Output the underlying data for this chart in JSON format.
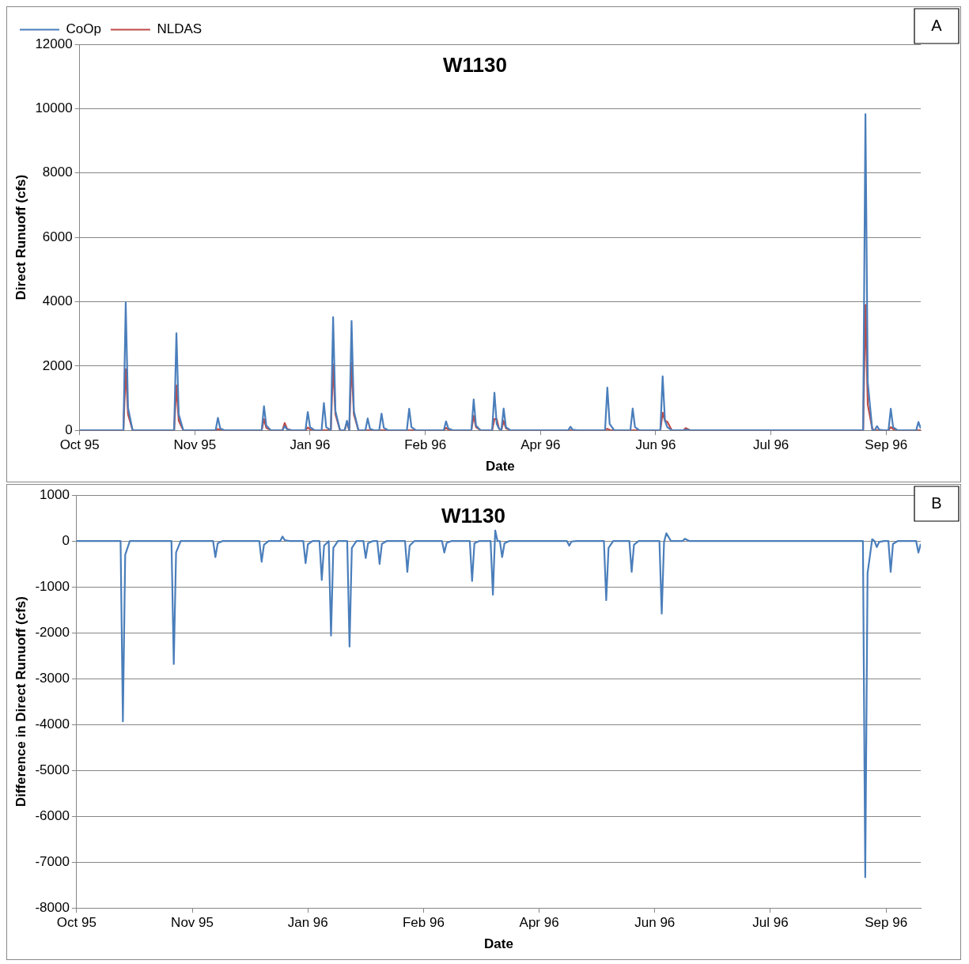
{
  "chart_data": [
    {
      "type": "line",
      "title": "W1130",
      "xlabel": "Date",
      "ylabel": "Direct Runuoff (cfs)",
      "annotations": [
        "A"
      ],
      "x": [
        "1995-10-01",
        "1995-10-20",
        "1995-10-21",
        "1995-10-22",
        "1995-10-24",
        "1995-11-11",
        "1995-11-12",
        "1995-11-13",
        "1995-11-15",
        "1995-11-29",
        "1995-11-30",
        "1995-12-01",
        "1995-12-03",
        "1995-12-19",
        "1995-12-20",
        "1995-12-21",
        "1995-12-23",
        "1995-12-28",
        "1995-12-29",
        "1995-12-30",
        "1996-01-01",
        "1996-01-07",
        "1996-01-08",
        "1996-01-09",
        "1996-01-11",
        "1996-01-14",
        "1996-01-15",
        "1996-01-16",
        "1996-01-18",
        "1996-01-19",
        "1996-01-20",
        "1996-01-22",
        "1996-01-24",
        "1996-01-25",
        "1996-01-26",
        "1996-01-27",
        "1996-01-28",
        "1996-01-30",
        "1996-02-02",
        "1996-02-03",
        "1996-02-04",
        "1996-02-06",
        "1996-02-08",
        "1996-02-09",
        "1996-02-10",
        "1996-02-12",
        "1996-02-20",
        "1996-02-21",
        "1996-02-22",
        "1996-02-24",
        "1996-03-07",
        "1996-03-08",
        "1996-03-09",
        "1996-03-11",
        "1996-03-19",
        "1996-03-20",
        "1996-03-21",
        "1996-03-23",
        "1996-03-28",
        "1996-03-29",
        "1996-03-30",
        "1996-03-31",
        "1996-04-01",
        "1996-04-02",
        "1996-04-03",
        "1996-04-05",
        "1996-04-30",
        "1996-05-01",
        "1996-05-02",
        "1996-05-04",
        "1996-05-16",
        "1996-05-17",
        "1996-05-18",
        "1996-05-20",
        "1996-05-27",
        "1996-05-28",
        "1996-05-29",
        "1996-05-31",
        "1996-06-09",
        "1996-06-10",
        "1996-06-11",
        "1996-06-12",
        "1996-06-14",
        "1996-06-19",
        "1996-06-20",
        "1996-06-22",
        "1996-09-05",
        "1996-09-06",
        "1996-09-07",
        "1996-09-09",
        "1996-09-10",
        "1996-09-11",
        "1996-09-12",
        "1996-09-14",
        "1996-09-16",
        "1996-09-17",
        "1996-09-18",
        "1996-09-20",
        "1996-09-28",
        "1996-09-29",
        "1996-09-30"
      ],
      "series": [
        {
          "name": "CoOp",
          "color": "#4a7ebb",
          "values": [
            0,
            0,
            3970,
            700,
            0,
            0,
            3020,
            500,
            0,
            0,
            390,
            60,
            0,
            0,
            750,
            150,
            0,
            0,
            130,
            30,
            0,
            0,
            570,
            100,
            0,
            0,
            850,
            100,
            0,
            3520,
            600,
            0,
            0,
            300,
            0,
            3400,
            600,
            0,
            0,
            370,
            50,
            0,
            0,
            520,
            80,
            0,
            0,
            670,
            100,
            0,
            0,
            280,
            60,
            0,
            0,
            960,
            150,
            0,
            0,
            1170,
            200,
            50,
            0,
            680,
            100,
            0,
            0,
            110,
            20,
            0,
            0,
            1330,
            200,
            0,
            0,
            680,
            100,
            0,
            0,
            1680,
            300,
            100,
            0,
            0,
            20,
            0,
            0,
            9830,
            1500,
            0,
            0,
            130,
            20,
            0,
            0,
            670,
            100,
            0,
            0,
            260,
            60
          ]
        },
        {
          "name": "NLDAS",
          "color": "#be4b48",
          "values": [
            0,
            0,
            1900,
            500,
            0,
            0,
            1400,
            300,
            0,
            0,
            40,
            10,
            0,
            0,
            350,
            80,
            0,
            0,
            230,
            50,
            0,
            0,
            90,
            30,
            0,
            0,
            0,
            0,
            0,
            2050,
            500,
            0,
            0,
            250,
            0,
            2100,
            500,
            0,
            0,
            0,
            0,
            0,
            0,
            0,
            0,
            0,
            0,
            0,
            0,
            0,
            0,
            80,
            20,
            0,
            0,
            450,
            100,
            0,
            0,
            350,
            350,
            50,
            0,
            300,
            60,
            0,
            0,
            0,
            0,
            0,
            0,
            50,
            10,
            0,
            0,
            0,
            0,
            0,
            0,
            550,
            300,
            270,
            0,
            0,
            70,
            0,
            0,
            3900,
            800,
            40,
            0,
            0,
            0,
            0,
            0,
            100,
            40,
            0,
            0,
            0,
            0
          ]
        }
      ],
      "xlim": [
        "1995-10-01",
        "1996-09-30"
      ],
      "xticks": [
        {
          "value": "1995-10-01",
          "label": "Oct 95"
        },
        {
          "value": "1995-11-20",
          "label": "Nov 95"
        },
        {
          "value": "1996-01-09",
          "label": "Jan 96"
        },
        {
          "value": "1996-02-28",
          "label": "Feb 96"
        },
        {
          "value": "1996-04-18",
          "label": "Apr 96"
        },
        {
          "value": "1996-06-07",
          "label": "Jun 96"
        },
        {
          "value": "1996-07-27",
          "label": "Jul 96"
        },
        {
          "value": "1996-09-15",
          "label": "Sep 96"
        }
      ],
      "ylim": [
        0,
        12000
      ],
      "yticks": [
        0,
        2000,
        4000,
        6000,
        8000,
        10000,
        12000
      ],
      "grid": "y",
      "legend": "top left",
      "marker": "none",
      "line_style": "solid"
    },
    {
      "type": "line",
      "title": "W1130",
      "xlabel": "Date",
      "ylabel": "Difference in Direct Runuoff (cfs)",
      "annotations": [
        "B"
      ],
      "x": [
        "1995-10-01",
        "1995-10-20",
        "1995-10-21",
        "1995-10-22",
        "1995-10-24",
        "1995-11-11",
        "1995-11-12",
        "1995-11-13",
        "1995-11-15",
        "1995-11-29",
        "1995-11-30",
        "1995-12-01",
        "1995-12-03",
        "1995-12-19",
        "1995-12-20",
        "1995-12-21",
        "1995-12-23",
        "1995-12-28",
        "1995-12-29",
        "1995-12-30",
        "1996-01-01",
        "1996-01-07",
        "1996-01-08",
        "1996-01-09",
        "1996-01-11",
        "1996-01-14",
        "1996-01-15",
        "1996-01-16",
        "1996-01-18",
        "1996-01-19",
        "1996-01-20",
        "1996-01-22",
        "1996-01-24",
        "1996-01-25",
        "1996-01-26",
        "1996-01-27",
        "1996-01-28",
        "1996-01-30",
        "1996-02-02",
        "1996-02-03",
        "1996-02-04",
        "1996-02-06",
        "1996-02-08",
        "1996-02-09",
        "1996-02-10",
        "1996-02-12",
        "1996-02-20",
        "1996-02-21",
        "1996-02-22",
        "1996-02-24",
        "1996-03-07",
        "1996-03-08",
        "1996-03-09",
        "1996-03-11",
        "1996-03-19",
        "1996-03-20",
        "1996-03-21",
        "1996-03-23",
        "1996-03-28",
        "1996-03-29",
        "1996-03-30",
        "1996-03-31",
        "1996-04-01",
        "1996-04-02",
        "1996-04-03",
        "1996-04-05",
        "1996-04-30",
        "1996-05-01",
        "1996-05-02",
        "1996-05-04",
        "1996-05-16",
        "1996-05-17",
        "1996-05-18",
        "1996-05-20",
        "1996-05-27",
        "1996-05-28",
        "1996-05-29",
        "1996-05-31",
        "1996-06-09",
        "1996-06-10",
        "1996-06-11",
        "1996-06-12",
        "1996-06-14",
        "1996-06-19",
        "1996-06-20",
        "1996-06-22",
        "1996-09-05",
        "1996-09-06",
        "1996-09-07",
        "1996-09-09",
        "1996-09-10",
        "1996-09-11",
        "1996-09-12",
        "1996-09-14",
        "1996-09-16",
        "1996-09-17",
        "1996-09-18",
        "1996-09-20",
        "1996-09-28",
        "1996-09-29",
        "1996-09-30"
      ],
      "series": [
        {
          "color": "#4a7ebb",
          "values": [
            0,
            0,
            -3930,
            -300,
            0,
            0,
            -2680,
            -250,
            0,
            0,
            -350,
            -50,
            0,
            0,
            -450,
            -80,
            0,
            0,
            100,
            20,
            0,
            0,
            -480,
            -70,
            0,
            0,
            -850,
            -100,
            0,
            -2060,
            -150,
            0,
            0,
            0,
            0,
            -2300,
            -150,
            0,
            0,
            -370,
            -50,
            0,
            0,
            -500,
            -60,
            0,
            0,
            -670,
            -100,
            0,
            0,
            -250,
            -40,
            0,
            0,
            -870,
            -50,
            0,
            0,
            -1170,
            230,
            0,
            0,
            -350,
            -50,
            0,
            0,
            -100,
            -10,
            0,
            0,
            -1290,
            -150,
            0,
            0,
            -670,
            -80,
            0,
            0,
            -1580,
            -20,
            170,
            0,
            0,
            50,
            0,
            0,
            -7330,
            -700,
            40,
            0,
            -130,
            -20,
            0,
            0,
            -670,
            -60,
            0,
            0,
            -250,
            -60
          ]
        }
      ],
      "xlim": [
        "1995-10-01",
        "1996-09-30"
      ],
      "xticks": [
        {
          "value": "1995-10-01",
          "label": "Oct 95"
        },
        {
          "value": "1995-11-20",
          "label": "Nov 95"
        },
        {
          "value": "1996-01-09",
          "label": "Jan 96"
        },
        {
          "value": "1996-02-28",
          "label": "Feb 96"
        },
        {
          "value": "1996-04-18",
          "label": "Apr 96"
        },
        {
          "value": "1996-06-07",
          "label": "Jun 96"
        },
        {
          "value": "1996-07-27",
          "label": "Jul 96"
        },
        {
          "value": "1996-09-15",
          "label": "Sep 96"
        }
      ],
      "ylim": [
        -8000,
        1000
      ],
      "yticks": [
        -8000,
        -7000,
        -6000,
        -5000,
        -4000,
        -3000,
        -2000,
        -1000,
        0,
        1000
      ],
      "grid": "y",
      "marker": "none",
      "line_style": "solid"
    }
  ]
}
